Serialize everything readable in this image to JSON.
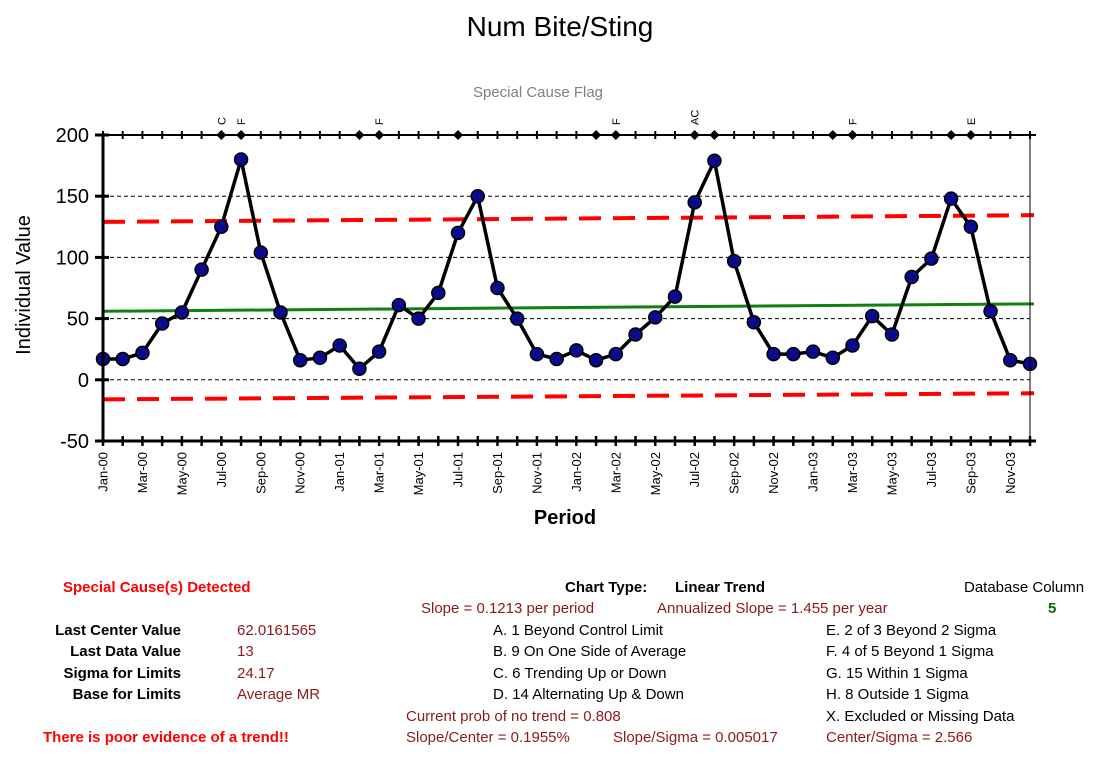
{
  "chart_data": {
    "type": "line",
    "title": "Num Bite/Sting",
    "subtitle": "Special Cause Flag",
    "xlabel": "Period",
    "ylabel": "Individual Value",
    "ylim": [
      -50,
      200
    ],
    "yticks": [
      200,
      150,
      100,
      50,
      0,
      -50
    ],
    "grid": "horizontal dashed",
    "x_tick_labels": [
      "Jan-00",
      "Mar-00",
      "May-00",
      "Jul-00",
      "Sep-00",
      "Nov-00",
      "Jan-01",
      "Mar-01",
      "May-01",
      "Jul-01",
      "Sep-01",
      "Nov-01",
      "Jan-02",
      "Mar-02",
      "May-02",
      "Jul-02",
      "Sep-02",
      "Nov-02",
      "Jan-03",
      "Mar-03",
      "May-03",
      "Jul-03",
      "Sep-03",
      "Nov-03"
    ],
    "series": [
      {
        "values": [
          17,
          17,
          22,
          46,
          55,
          90,
          125,
          180,
          104,
          55,
          16,
          18,
          28,
          9,
          23,
          61,
          50,
          71,
          120,
          150,
          75,
          50,
          21,
          17,
          24,
          16,
          21,
          37,
          51,
          68,
          145,
          179,
          97,
          47,
          21,
          21,
          23,
          18,
          28,
          52,
          37,
          84,
          99,
          148,
          125,
          56,
          16,
          13
        ]
      }
    ],
    "center_line": {
      "start": 56,
      "end": 62,
      "color": "#108010"
    },
    "upper_limit": {
      "start": 129,
      "end": 134.5,
      "color": "#ff0000"
    },
    "lower_limit": {
      "start": -16,
      "end": -11,
      "color": "#ff0000"
    },
    "flags": [
      {
        "period": 7,
        "label": "C"
      },
      {
        "period": 8,
        "label": "F"
      },
      {
        "period": 14,
        "label": ""
      },
      {
        "period": 15,
        "label": "F"
      },
      {
        "period": 19,
        "label": ""
      },
      {
        "period": 26,
        "label": ""
      },
      {
        "period": 27,
        "label": "F"
      },
      {
        "period": 31,
        "label": "AC"
      },
      {
        "period": 32,
        "label": ""
      },
      {
        "period": 38,
        "label": ""
      },
      {
        "period": 39,
        "label": "F"
      },
      {
        "period": 44,
        "label": ""
      },
      {
        "period": 45,
        "label": "E"
      }
    ],
    "colors": {
      "line": "#000000",
      "marker": "#0a0a8c",
      "grid": "#000000"
    }
  },
  "summary": {
    "special_cause": "Special Cause(s) Detected",
    "last_center_label": "Last Center Value",
    "last_center_value": "62.0161565",
    "last_data_label": "Last Data Value",
    "last_data_value": "13",
    "sigma_label": "Sigma for Limits",
    "sigma_value": "24.17",
    "base_label": "Base for Limits",
    "base_value": "Average MR",
    "trend_evidence": "There is poor evidence of a trend!!"
  },
  "chart_info": {
    "chart_type_label": "Chart Type:",
    "chart_type_value": "Linear Trend",
    "slope": "Slope = 0.1213 per period",
    "annualized_slope": "Annualized Slope = 1.455 per year",
    "rule_a": "A.  1 Beyond Control Limit",
    "rule_b": "B.  9 On One Side of Average",
    "rule_c": "C.  6 Trending Up or Down",
    "rule_d": "D.  14 Alternating  Up & Down",
    "prob_no_trend": "Current prob of no trend = 0.808",
    "slope_center": "Slope/Center = 0.1955%",
    "slope_sigma": "Slope/Sigma = 0.005017",
    "rule_e": "E.  2 of 3 Beyond 2 Sigma",
    "rule_f": "F.  4 of 5 Beyond 1 Sigma",
    "rule_g": "G.  15 Within 1 Sigma",
    "rule_h": "H.  8 Outside 1 Sigma",
    "rule_x": "X.  Excluded or Missing Data",
    "center_sigma": "Center/Sigma = 2.566",
    "database_column_label": "Database Column",
    "database_column_value": "5"
  }
}
